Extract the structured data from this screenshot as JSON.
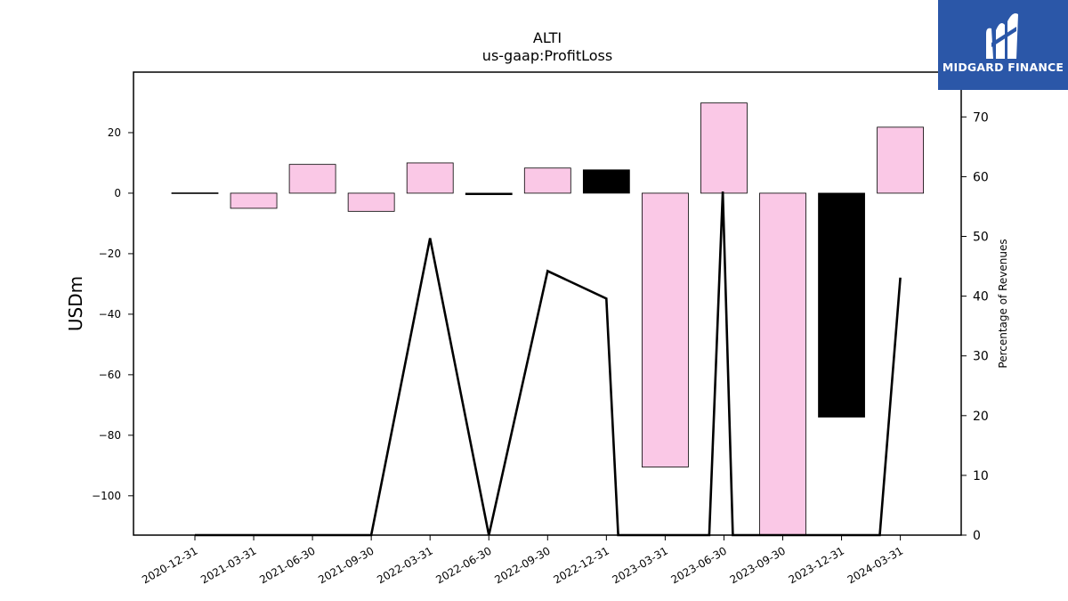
{
  "chart_data": {
    "type": "bar",
    "title": "ALTI",
    "subtitle": "us-gaap:ProfitLoss",
    "ylabel": "USDm",
    "y2label": "Percentage of Revenues",
    "categories": [
      "2020-12-31",
      "2021-03-31",
      "2021-06-30",
      "2021-09-30",
      "2022-03-31",
      "2022-06-30",
      "2022-09-30",
      "2022-12-31",
      "2023-03-31",
      "2023-06-30",
      "2023-09-30",
      "2023-12-31",
      "2024-03-31"
    ],
    "ylim": [
      -113,
      40
    ],
    "y2lim": [
      0,
      77.5
    ],
    "yticks": [
      20,
      0,
      -20,
      -40,
      -60,
      -80,
      -100
    ],
    "ytick_labels": [
      "20",
      "0",
      "−20",
      "−40",
      "−60",
      "−80",
      "−100"
    ],
    "y2ticks": [
      0,
      10,
      20,
      30,
      40,
      50,
      60,
      70
    ],
    "y2tick_labels": [
      "0",
      "10",
      "20",
      "30",
      "40",
      "50",
      "60",
      "70"
    ],
    "series": [
      {
        "type": "bar",
        "values": [
          0.1,
          -5,
          9.5,
          -6,
          10,
          -0.5,
          8.3,
          7.7,
          -90.5,
          29.8,
          -113,
          -74,
          21.8
        ],
        "colors": [
          "#fac8e6",
          "#fac8e6",
          "#fac8e6",
          "#fac8e6",
          "#fac8e6",
          "#000000",
          "#fac8e6",
          "#000000",
          "#fac8e6",
          "#fac8e6",
          "#fac8e6",
          "#000000",
          "#fac8e6"
        ]
      },
      {
        "type": "line",
        "axis": "right",
        "color": "#000000",
        "points": [
          {
            "x": 0,
            "y": 0
          },
          {
            "x": 3,
            "y": 0
          },
          {
            "x": 4,
            "y": 49.7
          },
          {
            "x": 5,
            "y": 0
          },
          {
            "x": 6,
            "y": 44.2
          },
          {
            "x": 7,
            "y": 39.6
          },
          {
            "x": 7.2,
            "y": 0
          },
          {
            "x": 8.75,
            "y": 0
          },
          {
            "x": 8.98,
            "y": 57.5
          },
          {
            "x": 9.15,
            "y": 0
          },
          {
            "x": 11.65,
            "y": 0
          },
          {
            "x": 12,
            "y": 43.1
          }
        ]
      }
    ],
    "grid": false,
    "legend": "none"
  },
  "logo": {
    "text": "MIDGARD FINANCE"
  }
}
